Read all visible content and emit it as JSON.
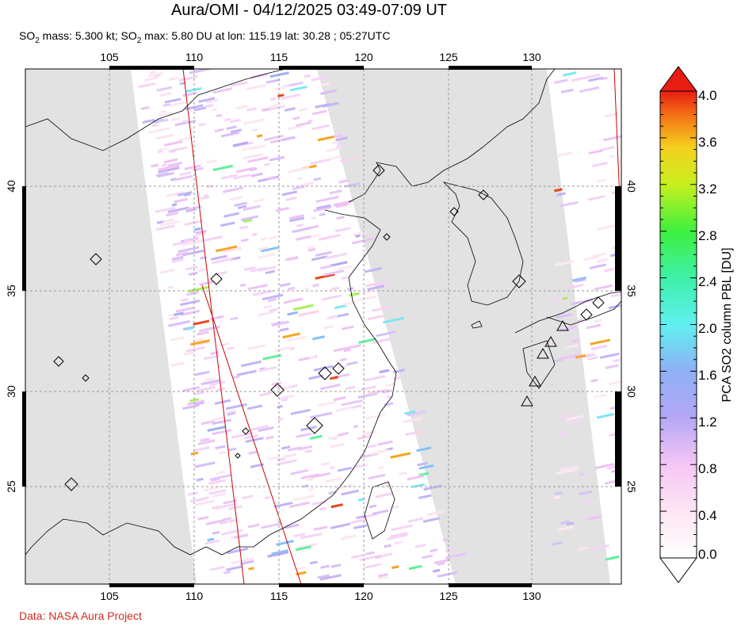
{
  "header": {
    "title": "Aura/OMI - 04/12/2025 03:49-07:09 UT",
    "subtitle_prefix": "SO",
    "subtitle_sub": "2",
    "subtitle_mid": " mass: 5.300 kt; SO",
    "subtitle_sub2": "2",
    "subtitle_rest": " max: 5.80 DU at lon: 115.19 lat: 30.28 ; 05:27UTC"
  },
  "map": {
    "lon_range": [
      100,
      135
    ],
    "lat_range": [
      20,
      45
    ],
    "lon_ticks": [
      "105",
      "110",
      "115",
      "120",
      "125",
      "130"
    ],
    "lat_ticks": [
      "40",
      "35",
      "30",
      "25"
    ],
    "no_data_color": "#e2e2e2",
    "grid": "dashed"
  },
  "colorbar": {
    "label": "PCA SO2 column PBL [DU]",
    "ticks": [
      "4.0",
      "3.6",
      "3.2",
      "2.8",
      "2.4",
      "2.0",
      "1.6",
      "1.2",
      "0.8",
      "0.4",
      "0.0"
    ],
    "range": [
      0.0,
      4.0
    ]
  },
  "footer": {
    "credit": "Data: NASA Aura Project"
  }
}
